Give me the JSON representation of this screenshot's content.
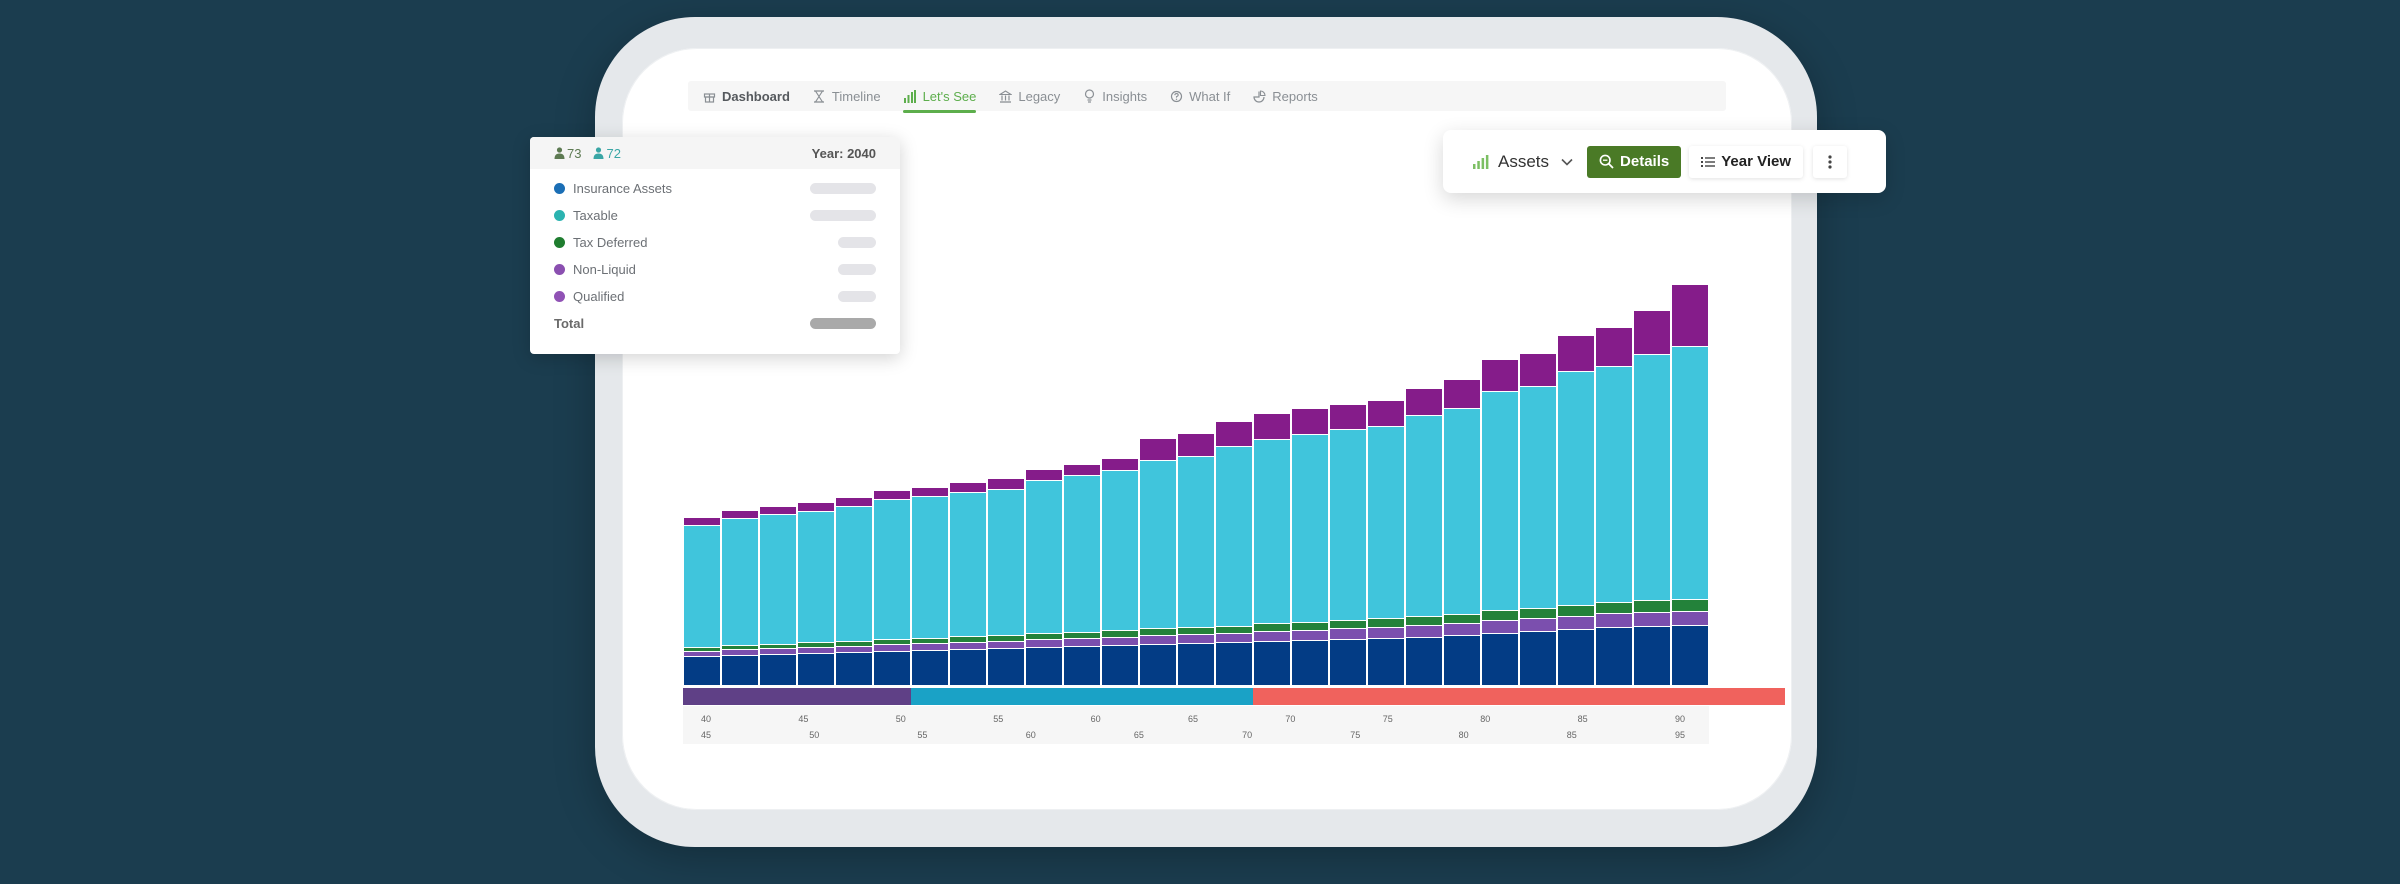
{
  "nav": {
    "items": [
      {
        "label": "Dashboard",
        "icon": "gift-icon"
      },
      {
        "label": "Timeline",
        "icon": "hourglass-icon"
      },
      {
        "label": "Let's See",
        "icon": "bar-chart-icon"
      },
      {
        "label": "Legacy",
        "icon": "bank-icon"
      },
      {
        "label": "Insights",
        "icon": "lightbulb-icon"
      },
      {
        "label": "What If",
        "icon": "question-circle-icon"
      },
      {
        "label": "Reports",
        "icon": "pie-chart-icon"
      }
    ],
    "active_index": 2
  },
  "legend": {
    "person1_age": "73",
    "person2_age": "72",
    "year": "Year: 2040",
    "items": [
      {
        "label": "Insurance Assets",
        "color": "#1a6eb5"
      },
      {
        "label": "Taxable",
        "color": "#2bb3b0"
      },
      {
        "label": "Tax Deferred",
        "color": "#1f7d2f"
      },
      {
        "label": "Non-Liquid",
        "color": "#8a4fb0"
      },
      {
        "label": "Qualified",
        "color": "#9052b5"
      }
    ],
    "total_label": "Total"
  },
  "toolbar": {
    "assets_label": "Assets",
    "details_label": "Details",
    "year_view_label": "Year View"
  },
  "chart_data": {
    "type": "bar",
    "stacked": true,
    "series": [
      {
        "color": "#033c85",
        "values": [
          29,
          30,
          31,
          32,
          33,
          34,
          35,
          36,
          37,
          38,
          39,
          40,
          41,
          42,
          43,
          44,
          45,
          46,
          47,
          48,
          50,
          52,
          54,
          56,
          58,
          59,
          60
        ]
      },
      {
        "color": "#7b4fae",
        "values": [
          5,
          6,
          6,
          6,
          6,
          7,
          7,
          7,
          7,
          8,
          8,
          8,
          9,
          9,
          9,
          10,
          10,
          11,
          11,
          12,
          12,
          13,
          13,
          13,
          14,
          14,
          14
        ]
      },
      {
        "color": "#23823a",
        "values": [
          4,
          4,
          4,
          5,
          5,
          5,
          5,
          6,
          6,
          6,
          6,
          7,
          7,
          7,
          7,
          8,
          8,
          8,
          9,
          9,
          9,
          10,
          10,
          11,
          11,
          12,
          12
        ]
      },
      {
        "color": "#40c5dc",
        "values": [
          122,
          127,
          130,
          131,
          135,
          140,
          142,
          144,
          146,
          153,
          157,
          160,
          168,
          171,
          180,
          184,
          188,
          191,
          192,
          201,
          206,
          219,
          222,
          234,
          236,
          246,
          253
        ]
      },
      {
        "color": "#851c8a",
        "values": [
          8,
          8,
          8,
          9,
          9,
          9,
          9,
          10,
          11,
          11,
          11,
          12,
          22,
          23,
          25,
          26,
          26,
          25,
          26,
          27,
          29,
          32,
          33,
          36,
          39,
          44,
          62
        ]
      }
    ],
    "age_bands": [
      {
        "start": 0,
        "end": 6,
        "color": "#5f4086"
      },
      {
        "start": 6,
        "end": 15,
        "color": "#1aa2c6"
      },
      {
        "start": 15,
        "end": 29,
        "color": "#f0625d"
      }
    ],
    "x_ticks_row1": [
      "40",
      "45",
      "50",
      "55",
      "60",
      "65",
      "70",
      "75",
      "80",
      "85",
      "90"
    ],
    "x_ticks_row2": [
      "45",
      "50",
      "55",
      "60",
      "65",
      "70",
      "75",
      "80",
      "85",
      "95"
    ]
  }
}
